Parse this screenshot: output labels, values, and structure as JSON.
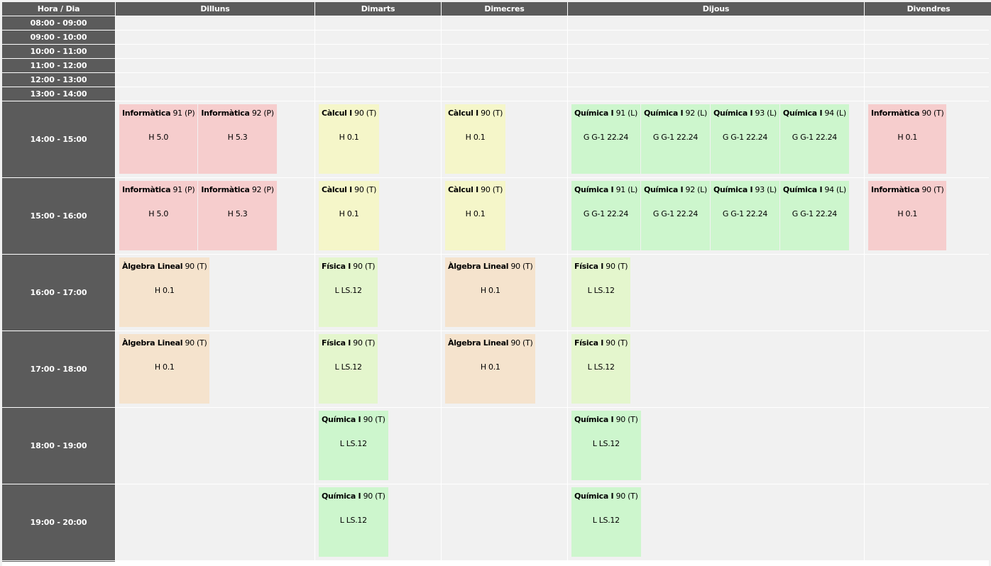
{
  "header": {
    "hour_day": "Hora / Dia",
    "days": [
      "Dilluns",
      "Dimarts",
      "Dimecres",
      "Dijous",
      "Divendres"
    ]
  },
  "slots": [
    "08:00 - 09:00",
    "09:00 - 10:00",
    "10:00 - 11:00",
    "11:00 - 12:00",
    "12:00 - 13:00",
    "13:00 - 14:00",
    "14:00 - 15:00",
    "15:00 - 16:00",
    "16:00 - 17:00",
    "17:00 - 18:00",
    "18:00 - 19:00",
    "19:00 - 20:00"
  ],
  "colors": {
    "header_bg": "#5b5b5b",
    "informatica": "#f6cdcd",
    "calcul": "#f5f6c9",
    "quimica": "#cdf6cd",
    "fisica": "#e4f6cd",
    "algebra": "#f5e3cd"
  },
  "schedule": [
    [
      [
        {
          "subject": "Informàtica",
          "group": "91 (P)",
          "room": "H 5.0",
          "color": "pink"
        },
        {
          "subject": "Informàtica",
          "group": "92 (P)",
          "room": "H 5.3",
          "color": "pink"
        }
      ],
      [
        {
          "subject": "Càlcul I",
          "group": "90 (T)",
          "room": "H 0.1",
          "color": "yellow"
        }
      ],
      [
        {
          "subject": "Càlcul I",
          "group": "90 (T)",
          "room": "H 0.1",
          "color": "yellow"
        }
      ],
      [
        {
          "subject": "Química I",
          "group": "91 (L)",
          "room": "G G-1 22.24",
          "color": "green"
        },
        {
          "subject": "Química I",
          "group": "92 (L)",
          "room": "G G-1 22.24",
          "color": "green"
        },
        {
          "subject": "Química I",
          "group": "93 (L)",
          "room": "G G-1 22.24",
          "color": "green"
        },
        {
          "subject": "Química I",
          "group": "94 (L)",
          "room": "G G-1 22.24",
          "color": "green"
        }
      ],
      [
        {
          "subject": "Informàtica",
          "group": "90 (T)",
          "room": "H 0.1",
          "color": "pink"
        }
      ]
    ],
    [
      [
        {
          "subject": "Informàtica",
          "group": "91 (P)",
          "room": "H 5.0",
          "color": "pink"
        },
        {
          "subject": "Informàtica",
          "group": "92 (P)",
          "room": "H 5.3",
          "color": "pink"
        }
      ],
      [
        {
          "subject": "Càlcul I",
          "group": "90 (T)",
          "room": "H 0.1",
          "color": "yellow"
        }
      ],
      [
        {
          "subject": "Càlcul I",
          "group": "90 (T)",
          "room": "H 0.1",
          "color": "yellow"
        }
      ],
      [
        {
          "subject": "Química I",
          "group": "91 (L)",
          "room": "G G-1 22.24",
          "color": "green"
        },
        {
          "subject": "Química I",
          "group": "92 (L)",
          "room": "G G-1 22.24",
          "color": "green"
        },
        {
          "subject": "Química I",
          "group": "93 (L)",
          "room": "G G-1 22.24",
          "color": "green"
        },
        {
          "subject": "Química I",
          "group": "94 (L)",
          "room": "G G-1 22.24",
          "color": "green"
        }
      ],
      [
        {
          "subject": "Informàtica",
          "group": "90 (T)",
          "room": "H 0.1",
          "color": "pink"
        }
      ]
    ],
    [
      [
        {
          "subject": "Àlgebra Lineal",
          "group": "90 (T)",
          "room": "H 0.1",
          "color": "peach"
        }
      ],
      [
        {
          "subject": "Física I",
          "group": "90 (T)",
          "room": "L LS.12",
          "color": "lightgreen"
        }
      ],
      [
        {
          "subject": "Àlgebra Lineal",
          "group": "90 (T)",
          "room": "H 0.1",
          "color": "peach"
        }
      ],
      [
        {
          "subject": "Física I",
          "group": "90 (T)",
          "room": "L LS.12",
          "color": "lightgreen"
        }
      ],
      []
    ],
    [
      [
        {
          "subject": "Àlgebra Lineal",
          "group": "90 (T)",
          "room": "H 0.1",
          "color": "peach"
        }
      ],
      [
        {
          "subject": "Física I",
          "group": "90 (T)",
          "room": "L LS.12",
          "color": "lightgreen"
        }
      ],
      [
        {
          "subject": "Àlgebra Lineal",
          "group": "90 (T)",
          "room": "H 0.1",
          "color": "peach"
        }
      ],
      [
        {
          "subject": "Física I",
          "group": "90 (T)",
          "room": "L LS.12",
          "color": "lightgreen"
        }
      ],
      []
    ],
    [
      [],
      [
        {
          "subject": "Química I",
          "group": "90 (T)",
          "room": "L LS.12",
          "color": "green"
        }
      ],
      [],
      [
        {
          "subject": "Química I",
          "group": "90 (T)",
          "room": "L LS.12",
          "color": "green"
        }
      ],
      []
    ],
    [
      [],
      [
        {
          "subject": "Química I",
          "group": "90 (T)",
          "room": "L LS.12",
          "color": "green"
        }
      ],
      [],
      [
        {
          "subject": "Química I",
          "group": "90 (T)",
          "room": "L LS.12",
          "color": "green"
        }
      ],
      []
    ]
  ]
}
